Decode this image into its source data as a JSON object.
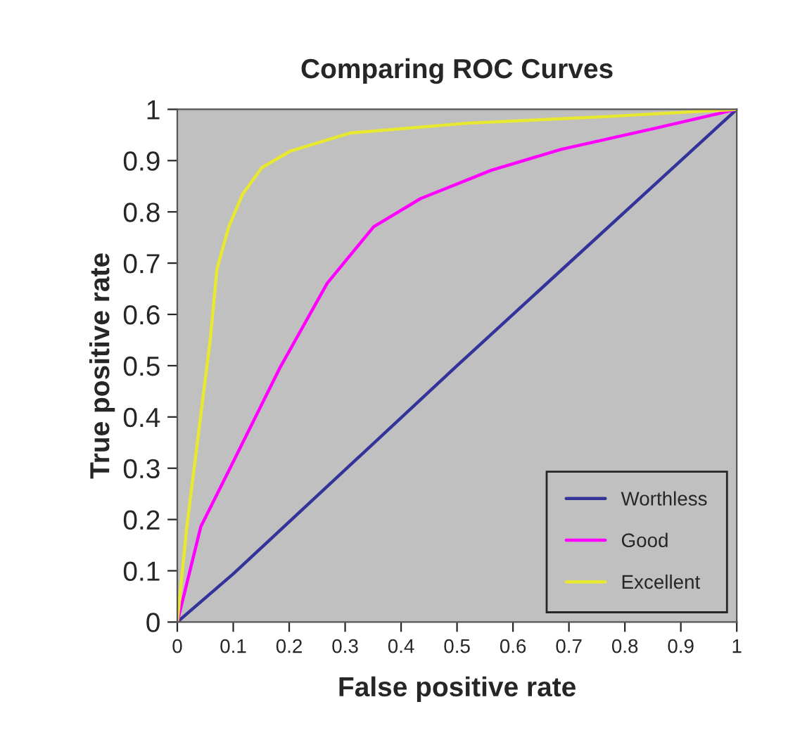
{
  "chart_data": {
    "type": "line",
    "title": "Comparing ROC Curves",
    "xlabel": "False positive rate",
    "ylabel": "True positive rate",
    "xlim": [
      0,
      1
    ],
    "ylim": [
      0,
      1
    ],
    "xticks": [
      0,
      0.1,
      0.2,
      0.3,
      0.4,
      0.5,
      0.6,
      0.7,
      0.8,
      0.9,
      1
    ],
    "yticks": [
      0,
      0.1,
      0.2,
      0.3,
      0.4,
      0.5,
      0.6,
      0.7,
      0.8,
      0.9,
      1
    ],
    "grid": false,
    "legend": "bottom right",
    "marker": "none",
    "line_style": "solid",
    "series": [
      {
        "name": "Worthless",
        "color": "#333399",
        "x": [
          0,
          0.1,
          0.5,
          1
        ],
        "values": [
          0,
          0.094,
          0.5,
          1
        ]
      },
      {
        "name": "Good",
        "color": "#ff00ff",
        "x": [
          0,
          0.042,
          0.092,
          0.184,
          0.268,
          0.351,
          0.435,
          0.561,
          0.686,
          0.854,
          1
        ],
        "values": [
          0,
          0.186,
          0.295,
          0.497,
          0.661,
          0.771,
          0.826,
          0.881,
          0.922,
          0.963,
          1
        ]
      },
      {
        "name": "Excellent",
        "color": "#e8e830",
        "x": [
          0,
          0.017,
          0.038,
          0.059,
          0.071,
          0.092,
          0.117,
          0.151,
          0.201,
          0.31,
          0.519,
          0.77,
          1
        ],
        "values": [
          0,
          0.186,
          0.369,
          0.552,
          0.689,
          0.771,
          0.835,
          0.886,
          0.918,
          0.954,
          0.973,
          0.986,
          1
        ]
      }
    ]
  }
}
